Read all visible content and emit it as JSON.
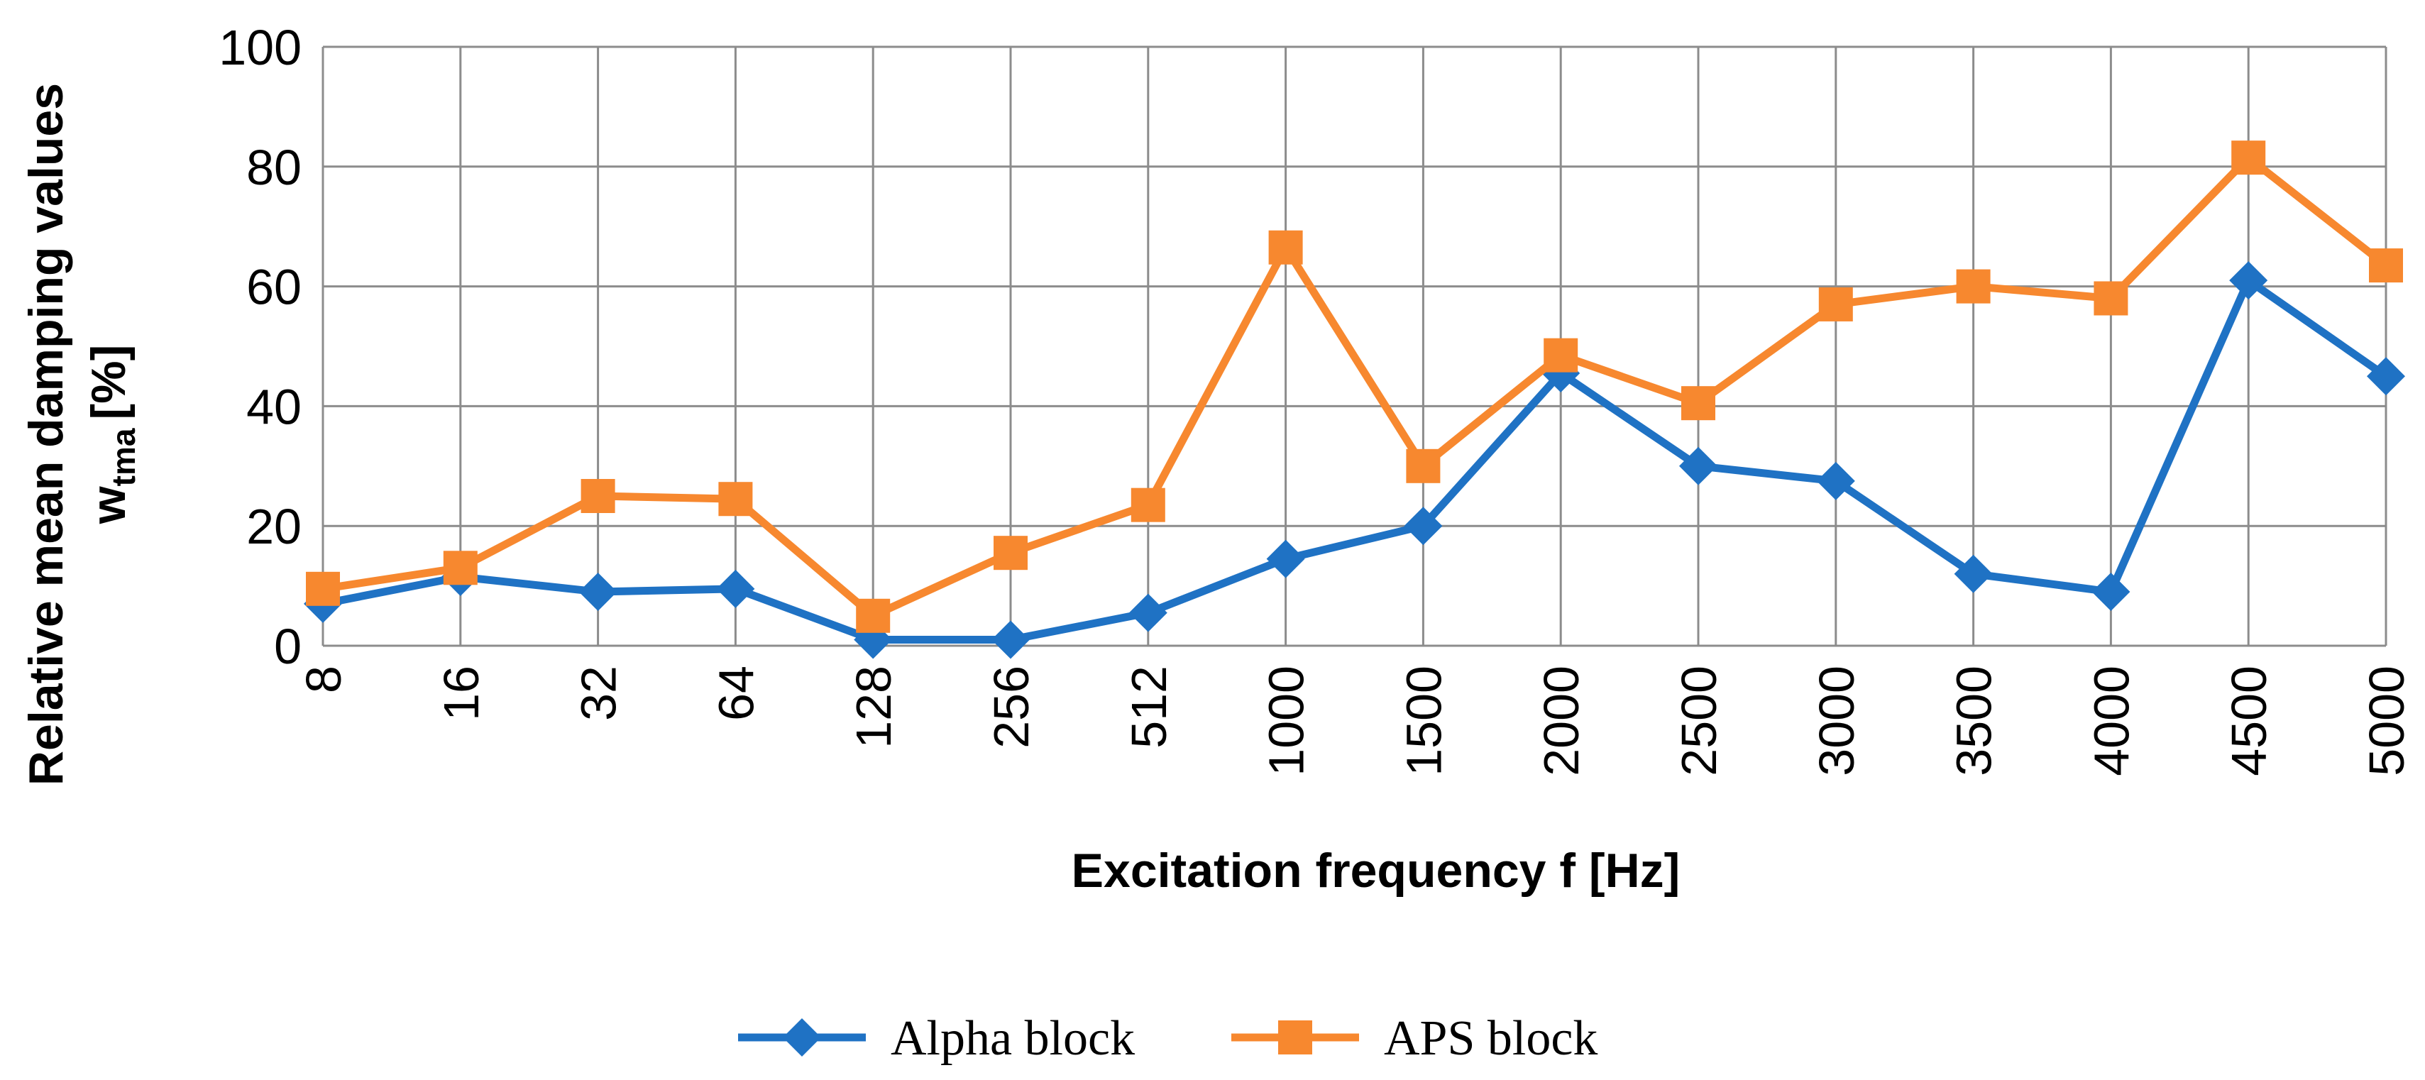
{
  "chart_data": {
    "type": "line",
    "title": "",
    "xlabel": "Excitation frequency f [Hz]",
    "ylabel_line1": "Relative mean damping values",
    "ylabel_line2_main": "w",
    "ylabel_line2_sub": "tma",
    "ylabel_line2_unit": "[%]",
    "categories": [
      "8",
      "16",
      "32",
      "64",
      "128",
      "256",
      "512",
      "1000",
      "1500",
      "2000",
      "2500",
      "3000",
      "3500",
      "4000",
      "4500",
      "5000"
    ],
    "ylim": [
      0,
      100
    ],
    "yticks": [
      0,
      20,
      40,
      60,
      80,
      100
    ],
    "grid": true,
    "legend_position": "bottom",
    "series": [
      {
        "name": "Alpha block",
        "color": "#1F72C4",
        "marker": "diamond",
        "values": [
          7,
          11.5,
          9,
          9.5,
          1,
          1,
          5.5,
          14.5,
          20,
          45.5,
          30,
          27.5,
          12,
          9,
          61,
          45
        ]
      },
      {
        "name": "APS block",
        "color": "#F7882F",
        "marker": "square",
        "values": [
          9.5,
          13,
          25,
          24.5,
          5,
          15.5,
          23.5,
          66.5,
          30,
          48.5,
          40.5,
          57,
          60,
          58,
          81.5,
          63.5
        ]
      }
    ]
  }
}
